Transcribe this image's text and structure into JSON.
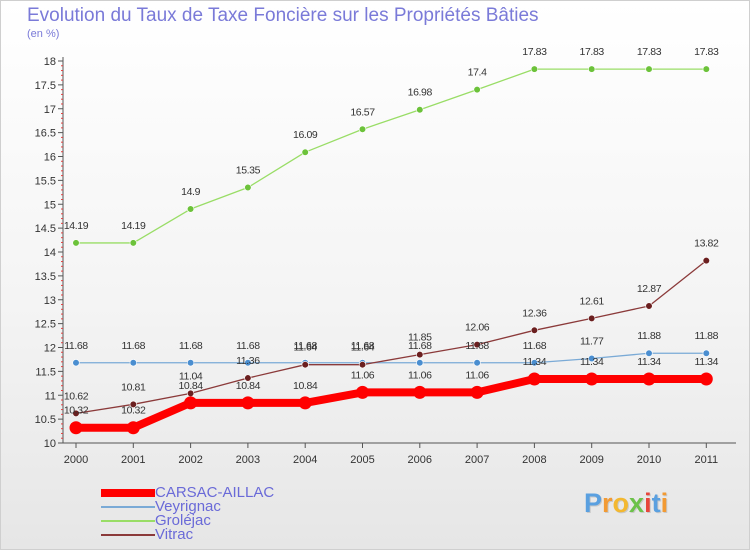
{
  "title": "Evolution du Taux de Taxe Foncière sur les Propriétés Bâties",
  "unit_label": "(en %)",
  "logo": {
    "text": "Proxiti",
    "letter_colors": [
      "#5aa0e0",
      "#f29a33",
      "#f3b830",
      "#6cc24a",
      "#e7453b",
      "#5aa0e0",
      "#f29a33"
    ]
  },
  "chart_data": {
    "type": "line",
    "x": [
      "2000",
      "2001",
      "2002",
      "2003",
      "2004",
      "2005",
      "2006",
      "2007",
      "2008",
      "2009",
      "2010",
      "2011"
    ],
    "ylim": [
      10,
      18
    ],
    "y_ticks": [
      "10",
      "10.5",
      "11",
      "11.5",
      "12",
      "12.5",
      "13",
      "13.5",
      "14",
      "14.5",
      "15",
      "15.5",
      "16",
      "16.5",
      "17",
      "17.5",
      "18"
    ],
    "grid": false,
    "legend_position": "bottom-left",
    "series": [
      {
        "name": "CARSAC-AILLAC",
        "color": "#ff0000",
        "marker_color": "#ff0000",
        "values": [
          10.32,
          10.32,
          10.84,
          10.84,
          10.84,
          11.06,
          11.06,
          11.06,
          11.34,
          11.34,
          11.34,
          11.34
        ],
        "labels": [
          "10.32",
          "10.32",
          "10.84",
          "10.84",
          "10.84",
          "11.06",
          "11.06",
          "11.06",
          "11.34",
          "11.34",
          "11.34",
          "11.34"
        ]
      },
      {
        "name": "Veyrignac",
        "color": "#7aaad6",
        "marker_color": "#4a8ed0",
        "values": [
          11.68,
          11.68,
          11.68,
          11.68,
          11.68,
          11.68,
          11.68,
          11.68,
          11.68,
          11.77,
          11.88,
          11.88
        ],
        "labels": [
          "11.68",
          "11.68",
          "11.68",
          "11.68",
          "11.68",
          "11.68",
          "11.68",
          "11.68",
          "11.68",
          "11.77",
          "11.88",
          "11.88"
        ]
      },
      {
        "name": "Groléjac",
        "color": "#99dd66",
        "marker_color": "#6cc23a",
        "values": [
          14.19,
          14.19,
          14.9,
          15.35,
          16.09,
          16.57,
          16.98,
          17.4,
          17.83,
          17.83,
          17.83,
          17.83
        ],
        "labels": [
          "14.19",
          "14.19",
          "14.9",
          "15.35",
          "16.09",
          "16.57",
          "16.98",
          "17.4",
          "17.83",
          "17.83",
          "17.83",
          "17.83"
        ]
      },
      {
        "name": "Vitrac",
        "color": "#8b3a3a",
        "marker_color": "#6b1f1f",
        "values": [
          10.62,
          10.81,
          11.04,
          11.36,
          11.64,
          11.64,
          11.85,
          12.06,
          12.36,
          12.61,
          12.87,
          13.82
        ],
        "labels": [
          "10.62",
          "10.81",
          "11.04",
          "11.36",
          "11.64",
          "11.64",
          "11.85",
          "12.06",
          "12.36",
          "12.61",
          "12.87",
          "13.82"
        ]
      }
    ]
  }
}
